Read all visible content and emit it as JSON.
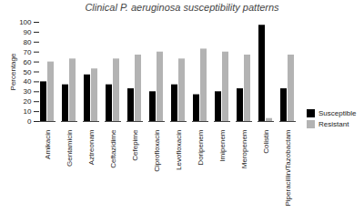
{
  "chart_data": {
    "type": "bar",
    "title": "Clinical P. aeruginosa susceptibility patterns",
    "y_label": "Percentage",
    "categories": [
      "Amikacin",
      "Gentamicin",
      "Aztreonam",
      "Ceftazidime",
      "Cefepime",
      "Ciprofloxacin",
      "Levofloxacin",
      "Doripenem",
      "Imipenem",
      "Meropenem",
      "Colistin",
      "Piperacillin/Tazobactam"
    ],
    "series": [
      {
        "name": "Susceptible",
        "color": "#000000",
        "values": [
          40,
          37,
          47,
          37,
          33,
          30,
          37,
          27,
          30,
          33,
          97,
          33
        ]
      },
      {
        "name": "Resistant",
        "color": "#b3b3b3",
        "values": [
          60,
          63,
          53,
          63,
          67,
          70,
          63,
          73,
          70,
          67,
          3,
          67
        ]
      }
    ],
    "ylim": [
      0,
      100
    ],
    "yticks": [
      0,
      10,
      20,
      30,
      40,
      50,
      60,
      70,
      80,
      90,
      100
    ],
    "grid": false,
    "legend": "right"
  }
}
